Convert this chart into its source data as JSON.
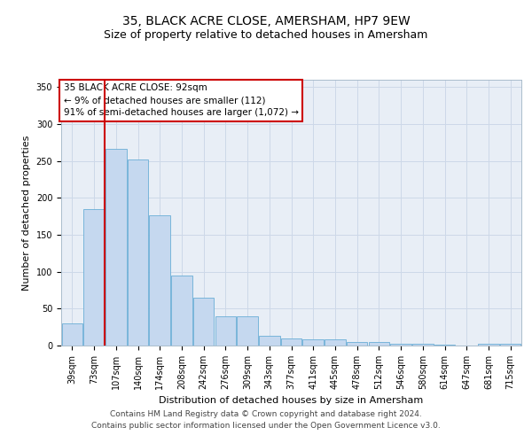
{
  "title1": "35, BLACK ACRE CLOSE, AMERSHAM, HP7 9EW",
  "title2": "Size of property relative to detached houses in Amersham",
  "xlabel": "Distribution of detached houses by size in Amersham",
  "ylabel": "Number of detached properties",
  "categories": [
    "39sqm",
    "73sqm",
    "107sqm",
    "140sqm",
    "174sqm",
    "208sqm",
    "242sqm",
    "276sqm",
    "309sqm",
    "343sqm",
    "377sqm",
    "411sqm",
    "445sqm",
    "478sqm",
    "512sqm",
    "546sqm",
    "580sqm",
    "614sqm",
    "647sqm",
    "681sqm",
    "715sqm"
  ],
  "values": [
    30,
    185,
    267,
    252,
    176,
    95,
    65,
    40,
    40,
    13,
    10,
    9,
    8,
    5,
    5,
    3,
    2,
    1,
    0,
    2,
    2
  ],
  "bar_color": "#c5d8ef",
  "bar_edge_color": "#6aaed6",
  "vline_x_index": 1,
  "vline_color": "#cc0000",
  "annotation_text": "35 BLACK ACRE CLOSE: 92sqm\n← 9% of detached houses are smaller (112)\n91% of semi-detached houses are larger (1,072) →",
  "annotation_box_color": "#ffffff",
  "annotation_box_edge": "#cc0000",
  "grid_color": "#cdd8e8",
  "bg_color": "#e8eef6",
  "ylim": [
    0,
    360
  ],
  "yticks": [
    0,
    50,
    100,
    150,
    200,
    250,
    300,
    350
  ],
  "footer1": "Contains HM Land Registry data © Crown copyright and database right 2024.",
  "footer2": "Contains public sector information licensed under the Open Government Licence v3.0.",
  "title1_fontsize": 10,
  "title2_fontsize": 9,
  "xlabel_fontsize": 8,
  "ylabel_fontsize": 8,
  "tick_fontsize": 7,
  "annotation_fontsize": 7.5,
  "footer_fontsize": 6.5
}
